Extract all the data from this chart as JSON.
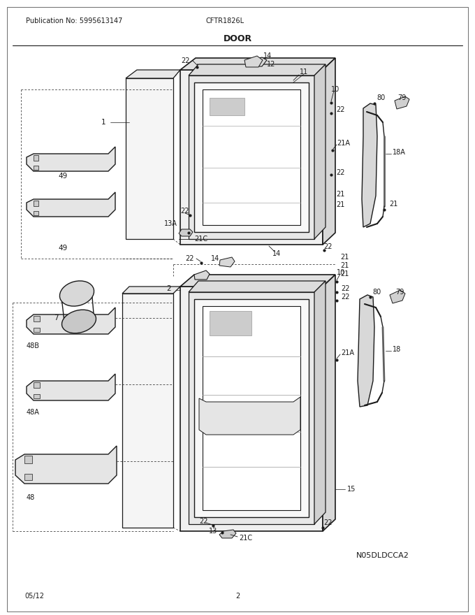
{
  "title": "DOOR",
  "pub_no": "Publication No: 5995613147",
  "model": "CFTR1826L",
  "date": "05/12",
  "page": "2",
  "part_code": "N05DLDCCA2",
  "bg_color": "#ffffff",
  "line_color": "#1a1a1a",
  "text_color": "#1a1a1a",
  "figsize": [
    6.8,
    8.8
  ],
  "dpi": 100
}
